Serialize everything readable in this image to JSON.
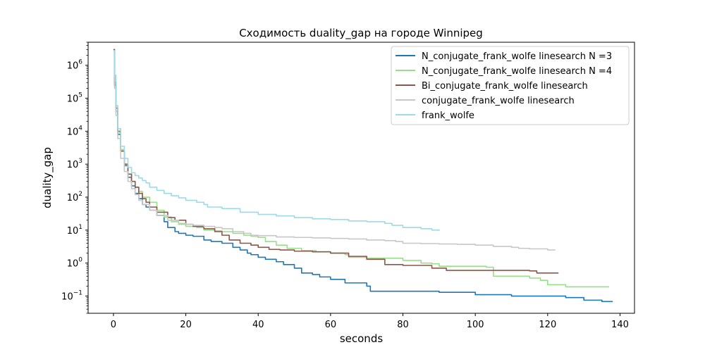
{
  "chart_data": {
    "type": "line",
    "title": "Сходимость duality_gap на городе Winnipeg",
    "xlabel": "seconds",
    "ylabel": "duality_gap",
    "xlim": [
      -7,
      144
    ],
    "ylim": [
      0.03,
      5000000
    ],
    "yscale": "log",
    "grid": false,
    "legend_position": "top-right",
    "x_ticks": [
      0,
      20,
      40,
      60,
      80,
      100,
      120,
      140
    ],
    "y_ticks": [
      {
        "value": 0.1,
        "base": "10",
        "exp": "−1"
      },
      {
        "value": 1,
        "base": "10",
        "exp": "0"
      },
      {
        "value": 10,
        "base": "10",
        "exp": "1"
      },
      {
        "value": 100,
        "base": "10",
        "exp": "2"
      },
      {
        "value": 1000,
        "base": "10",
        "exp": "3"
      },
      {
        "value": 10000,
        "base": "10",
        "exp": "4"
      },
      {
        "value": 100000,
        "base": "10",
        "exp": "5"
      },
      {
        "value": 1000000,
        "base": "10",
        "exp": "6"
      }
    ],
    "series": [
      {
        "name": "N_conjugate_frank_wolfe linesearch N =3",
        "color": "#1f77b4",
        "x": [
          0,
          0.3,
          0.7,
          1.2,
          2,
          3,
          4,
          5,
          6,
          7,
          8,
          9,
          10,
          12,
          14,
          15,
          17,
          18,
          20,
          22,
          25,
          27,
          30,
          33,
          35,
          37,
          38,
          40,
          42,
          45,
          47,
          50,
          52,
          55,
          57,
          60,
          62,
          63,
          64,
          65,
          67,
          70,
          71,
          75,
          80,
          90,
          95,
          100,
          105,
          110,
          115,
          120,
          125,
          130,
          135,
          138
        ],
        "y": [
          3000000,
          300000,
          40000,
          8000,
          2500,
          900,
          400,
          220,
          130,
          90,
          60,
          50,
          40,
          28,
          18,
          12,
          9,
          8,
          7,
          6.5,
          5,
          4.5,
          4,
          3,
          2.5,
          2,
          1.8,
          1.5,
          1.3,
          1.1,
          0.9,
          0.7,
          0.5,
          0.45,
          0.38,
          0.32,
          0.32,
          0.32,
          0.25,
          0.25,
          0.25,
          0.2,
          0.14,
          0.14,
          0.14,
          0.13,
          0.13,
          0.11,
          0.11,
          0.1,
          0.1,
          0.1,
          0.09,
          0.075,
          0.068,
          0.068
        ]
      },
      {
        "name": "N_conjugate_frank_wolfe linesearch N =4",
        "color": "#98df8a",
        "x": [
          0,
          0.3,
          0.7,
          1.2,
          2,
          3,
          4,
          5,
          6,
          7,
          8,
          10,
          12,
          14,
          16,
          18,
          20,
          23,
          25,
          28,
          30,
          33,
          36,
          38,
          40,
          42,
          45,
          48,
          52,
          56,
          60,
          64,
          65,
          70,
          75,
          80,
          85,
          88,
          90,
          95,
          100,
          103,
          105,
          110,
          115,
          118,
          120,
          125,
          130,
          137
        ],
        "y": [
          2800000,
          250000,
          40000,
          9000,
          2800,
          1000,
          500,
          300,
          200,
          150,
          100,
          70,
          40,
          25,
          18,
          15,
          13,
          12,
          10,
          9.5,
          9,
          8,
          7,
          6.5,
          6,
          4.5,
          3.5,
          2.8,
          2.4,
          2.2,
          2,
          1.8,
          1.5,
          1.4,
          1.4,
          1.2,
          1.0,
          0.95,
          0.8,
          0.8,
          0.8,
          0.75,
          0.4,
          0.4,
          0.35,
          0.3,
          0.22,
          0.19,
          0.19,
          0.19
        ]
      },
      {
        "name": "Bi_conjugate_frank_wolfe linesearch",
        "color": "#8c564b",
        "x": [
          0,
          0.3,
          0.7,
          1.2,
          2,
          3,
          4,
          5,
          6,
          7,
          8,
          9,
          10,
          12,
          15,
          17,
          20,
          22,
          25,
          28,
          30,
          32,
          35,
          38,
          40,
          43,
          46,
          50,
          55,
          60,
          65,
          70,
          73,
          75,
          80,
          85,
          88,
          92,
          96,
          100,
          105,
          110,
          115,
          117,
          120,
          123
        ],
        "y": [
          3000000,
          250000,
          50000,
          10000,
          2500,
          1000,
          500,
          300,
          200,
          130,
          90,
          70,
          50,
          35,
          24,
          20,
          15,
          13,
          11,
          9,
          7,
          5,
          4,
          3.5,
          3,
          2.6,
          2.5,
          2.3,
          2.2,
          2,
          1.6,
          1.3,
          1.3,
          0.9,
          0.85,
          0.85,
          0.7,
          0.6,
          0.6,
          0.6,
          0.6,
          0.6,
          0.58,
          0.5,
          0.5,
          0.5
        ]
      },
      {
        "name": "conjugate_frank_wolfe linesearch",
        "color": "#c7c7c7",
        "x": [
          0,
          0.3,
          0.7,
          1.2,
          2,
          3,
          4,
          5,
          6,
          7,
          8,
          10,
          12,
          15,
          18,
          20,
          22,
          25,
          28,
          30,
          33,
          36,
          38,
          40,
          45,
          50,
          55,
          60,
          65,
          70,
          75,
          78,
          80,
          85,
          90,
          95,
          100,
          105,
          110,
          112,
          115,
          120,
          122
        ],
        "y": [
          2800000,
          200000,
          30000,
          6000,
          1500,
          600,
          300,
          180,
          120,
          80,
          60,
          40,
          28,
          20,
          16,
          15,
          14,
          13,
          12,
          11,
          9,
          8,
          7,
          6.8,
          6.2,
          6,
          5.8,
          5.6,
          5.4,
          5,
          4.8,
          4.5,
          4,
          3.9,
          3.8,
          3.7,
          3.5,
          3.2,
          3.0,
          2.8,
          2.7,
          2.5,
          2.4
        ]
      },
      {
        "name": "frank_wolfe",
        "color": "#9edae5",
        "x": [
          0,
          0.3,
          0.7,
          1.2,
          2,
          3,
          4,
          5,
          6,
          7,
          8,
          9,
          10,
          12,
          14,
          16,
          18,
          20,
          23,
          25,
          26,
          30,
          35,
          40,
          45,
          50,
          55,
          60,
          65,
          70,
          75,
          77,
          80,
          85,
          88,
          90
        ],
        "y": [
          2800000,
          500000,
          60000,
          12000,
          3500,
          1500,
          800,
          550,
          450,
          380,
          320,
          270,
          200,
          160,
          130,
          110,
          95,
          80,
          70,
          60,
          50,
          45,
          35,
          30,
          27,
          24,
          22,
          21,
          19,
          18,
          16,
          14,
          12,
          11,
          10,
          9.5
        ]
      }
    ]
  }
}
